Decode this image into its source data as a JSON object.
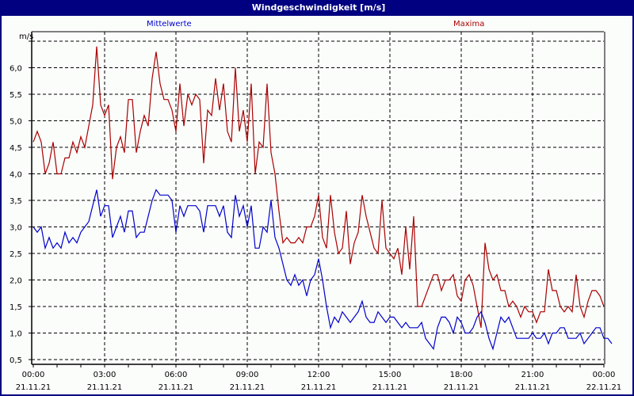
{
  "window": {
    "title": "Windgeschwindigkeit [m/s]"
  },
  "legend": {
    "mean_label": "Mittelwerte",
    "max_label": "Maxima",
    "mean_color": "#0000cc",
    "max_color": "#aa0000"
  },
  "axis": {
    "y_unit": "m/s"
  },
  "chart_data": {
    "type": "line",
    "title": "Windgeschwindigkeit [m/s]",
    "xlabel": "",
    "ylabel": "m/s",
    "ylim": [
      0.4,
      6.6
    ],
    "y_ticks": [
      "0,5",
      "1,0",
      "1,5",
      "2,0",
      "2,5",
      "3,0",
      "3,5",
      "4,0",
      "4,5",
      "5,0",
      "5,5",
      "6,0"
    ],
    "x_ticks": [
      {
        "time": "00:00",
        "date": "21.11.21"
      },
      {
        "time": "03:00",
        "date": "21.11.21"
      },
      {
        "time": "06:00",
        "date": "21.11.21"
      },
      {
        "time": "09:00",
        "date": "21.11.21"
      },
      {
        "time": "12:00",
        "date": "21.11.21"
      },
      {
        "time": "15:00",
        "date": "21.11.21"
      },
      {
        "time": "18:00",
        "date": "21.11.21"
      },
      {
        "time": "21:00",
        "date": "21.11.21"
      },
      {
        "time": "00:00",
        "date": "22.11.21"
      }
    ],
    "x_interval_minutes": 10,
    "grid": true,
    "series": [
      {
        "name": "Maxima",
        "color": "#aa0000",
        "values": [
          4.6,
          4.8,
          4.6,
          4.0,
          4.2,
          4.6,
          4.0,
          4.0,
          4.3,
          4.3,
          4.6,
          4.4,
          4.7,
          4.5,
          4.9,
          5.3,
          6.4,
          5.3,
          5.1,
          5.3,
          3.9,
          4.5,
          4.7,
          4.4,
          5.4,
          5.4,
          4.4,
          4.8,
          5.1,
          4.9,
          5.8,
          6.3,
          5.7,
          5.4,
          5.4,
          5.2,
          4.8,
          5.7,
          4.9,
          5.5,
          5.3,
          5.5,
          5.4,
          4.2,
          5.2,
          5.1,
          5.8,
          5.2,
          5.7,
          4.8,
          4.6,
          6.0,
          4.8,
          5.2,
          4.6,
          5.7,
          4.0,
          4.6,
          4.5,
          5.7,
          4.4,
          4.0,
          3.3,
          2.7,
          2.8,
          2.7,
          2.7,
          2.8,
          2.7,
          3.0,
          3.0,
          3.2,
          3.6,
          2.8,
          2.6,
          3.6,
          2.9,
          2.5,
          2.6,
          3.3,
          2.3,
          2.7,
          2.9,
          3.6,
          3.2,
          2.9,
          2.6,
          2.5,
          3.5,
          2.6,
          2.5,
          2.4,
          2.6,
          2.1,
          3.0,
          2.2,
          3.2,
          1.5,
          1.5,
          1.7,
          1.9,
          2.1,
          2.1,
          1.8,
          2.0,
          2.0,
          2.1,
          1.7,
          1.6,
          2.0,
          2.1,
          1.9,
          1.5,
          1.1,
          2.7,
          2.2,
          2.0,
          2.1,
          1.8,
          1.8,
          1.5,
          1.6,
          1.5,
          1.3,
          1.5,
          1.4,
          1.4,
          1.2,
          1.4,
          1.4,
          2.2,
          1.8,
          1.8,
          1.5,
          1.4,
          1.5,
          1.4,
          2.1,
          1.5,
          1.3,
          1.6,
          1.8,
          1.8,
          1.7,
          1.5
        ]
      },
      {
        "name": "Mittelwerte",
        "color": "#0000cc",
        "values": [
          3.0,
          2.9,
          3.0,
          2.6,
          2.8,
          2.6,
          2.7,
          2.6,
          2.9,
          2.7,
          2.8,
          2.7,
          2.9,
          3.0,
          3.1,
          3.4,
          3.7,
          3.2,
          3.4,
          3.4,
          2.8,
          3.0,
          3.2,
          2.9,
          3.3,
          3.3,
          2.8,
          2.9,
          2.9,
          3.2,
          3.5,
          3.7,
          3.6,
          3.6,
          3.6,
          3.5,
          2.9,
          3.4,
          3.2,
          3.4,
          3.4,
          3.4,
          3.3,
          2.9,
          3.4,
          3.4,
          3.4,
          3.2,
          3.4,
          2.9,
          2.8,
          3.6,
          3.2,
          3.4,
          3.0,
          3.4,
          2.6,
          2.6,
          3.0,
          2.9,
          3.5,
          2.8,
          2.6,
          2.3,
          2.0,
          1.9,
          2.1,
          1.9,
          2.0,
          1.7,
          2.0,
          2.1,
          2.4,
          2.0,
          1.5,
          1.1,
          1.3,
          1.2,
          1.4,
          1.3,
          1.2,
          1.3,
          1.4,
          1.6,
          1.3,
          1.2,
          1.2,
          1.4,
          1.3,
          1.2,
          1.3,
          1.3,
          1.2,
          1.1,
          1.2,
          1.1,
          1.1,
          1.1,
          1.2,
          0.9,
          0.8,
          0.7,
          1.1,
          1.3,
          1.3,
          1.2,
          1.0,
          1.3,
          1.2,
          1.0,
          1.0,
          1.1,
          1.3,
          1.4,
          1.2,
          0.9,
          0.7,
          1.0,
          1.3,
          1.2,
          1.3,
          1.1,
          0.9,
          0.9,
          0.9,
          0.9,
          1.0,
          0.9,
          0.9,
          1.0,
          0.8,
          1.0,
          1.0,
          1.1,
          1.1,
          0.9,
          0.9,
          0.9,
          1.0,
          0.8,
          0.9,
          1.0,
          1.1,
          1.1,
          0.9,
          0.9,
          0.8
        ]
      }
    ]
  }
}
